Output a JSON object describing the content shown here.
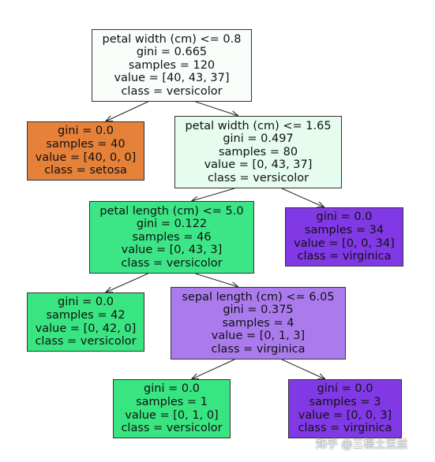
{
  "tree": {
    "nodes": [
      {
        "id": "n0",
        "lines": [
          "petal width (cm) <= 0.8",
          "gini = 0.665",
          "samples = 120",
          "value = [40, 43, 37]",
          "class = versicolor"
        ],
        "fill": "#f9fefb"
      },
      {
        "id": "n1",
        "lines": [
          "gini = 0.0",
          "samples = 40",
          "value = [40, 0, 0]",
          "class = setosa"
        ],
        "fill": "#e58139"
      },
      {
        "id": "n2",
        "lines": [
          "petal width (cm) <= 1.65",
          "gini = 0.497",
          "samples = 80",
          "value = [0, 43, 37]",
          "class = versicolor"
        ],
        "fill": "#e5fcef"
      },
      {
        "id": "n3",
        "lines": [
          "petal length (cm) <= 5.0",
          "gini = 0.122",
          "samples = 46",
          "value = [0, 43, 3]",
          "class = versicolor"
        ],
        "fill": "#3ce687"
      },
      {
        "id": "n4",
        "lines": [
          "gini = 0.0",
          "samples = 34",
          "value = [0, 0, 34]",
          "class = virginica"
        ],
        "fill": "#8139e5"
      },
      {
        "id": "n5",
        "lines": [
          "gini = 0.0",
          "samples = 42",
          "value = [0, 42, 0]",
          "class = versicolor"
        ],
        "fill": "#39e581"
      },
      {
        "id": "n6",
        "lines": [
          "sepal length (cm) <= 6.05",
          "gini = 0.375",
          "samples = 4",
          "value = [0, 1, 3]",
          "class = virginica"
        ],
        "fill": "#ab7bee"
      },
      {
        "id": "n7",
        "lines": [
          "gini = 0.0",
          "samples = 1",
          "value = [0, 1, 0]",
          "class = versicolor"
        ],
        "fill": "#39e581"
      },
      {
        "id": "n8",
        "lines": [
          "gini = 0.0",
          "samples = 3",
          "value = [0, 0, 3]",
          "class = virginica"
        ],
        "fill": "#8139e5"
      }
    ],
    "edges": [
      [
        "n0",
        "n1"
      ],
      [
        "n0",
        "n2"
      ],
      [
        "n2",
        "n3"
      ],
      [
        "n2",
        "n4"
      ],
      [
        "n3",
        "n5"
      ],
      [
        "n3",
        "n6"
      ],
      [
        "n6",
        "n7"
      ],
      [
        "n6",
        "n8"
      ]
    ]
  },
  "watermark": {
    "text": "知乎 @三根土豆丝"
  }
}
